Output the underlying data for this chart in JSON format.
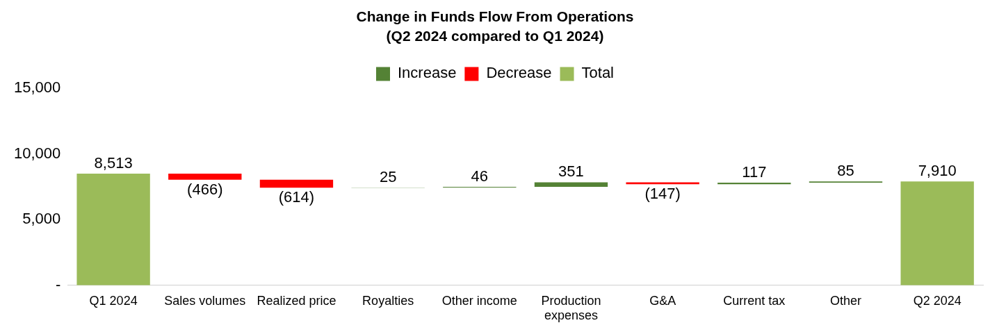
{
  "chart_data": {
    "type": "bar",
    "title": "Change in Funds Flow From Operations",
    "subtitle": "(Q2 2024 compared to Q1 2024)",
    "categories": [
      "Q1 2024",
      "Sales volumes",
      "Realized price",
      "Royalties",
      "Other income",
      "Production expenses",
      "G&A",
      "Current tax",
      "Other",
      "Q2 2024"
    ],
    "series": [
      {
        "name": "Increase",
        "color": "#548235",
        "base": [
          null,
          null,
          null,
          7433,
          7458,
          7504,
          null,
          7708,
          7825,
          null
        ],
        "values": [
          null,
          null,
          null,
          25,
          46,
          351,
          null,
          117,
          85,
          null
        ],
        "value_labels": [
          null,
          null,
          null,
          "25",
          "46",
          "351",
          null,
          "117",
          "85",
          null
        ]
      },
      {
        "name": "Decrease",
        "color": "#ff0000",
        "base": [
          null,
          8513,
          8047,
          null,
          null,
          null,
          7855,
          null,
          null,
          null
        ],
        "values": [
          null,
          -466,
          -614,
          null,
          null,
          null,
          -147,
          null,
          null,
          null
        ],
        "value_labels": [
          null,
          "(466)",
          "(614)",
          null,
          null,
          null,
          "(147)",
          null,
          null,
          null
        ]
      },
      {
        "name": "Total",
        "color": "#9bbb59",
        "values": [
          8513,
          null,
          null,
          null,
          null,
          null,
          null,
          null,
          null,
          7910
        ],
        "value_labels": [
          "8,513",
          null,
          null,
          null,
          null,
          null,
          null,
          null,
          null,
          "7,910"
        ]
      }
    ],
    "ylim": [
      0,
      15000
    ],
    "yticks": [
      {
        "value": 0,
        "label": "-"
      },
      {
        "value": 5000,
        "label": "5,000"
      },
      {
        "value": 10000,
        "label": "10,000"
      },
      {
        "value": 15000,
        "label": "15,000"
      }
    ],
    "grid": false,
    "legend": "top"
  }
}
